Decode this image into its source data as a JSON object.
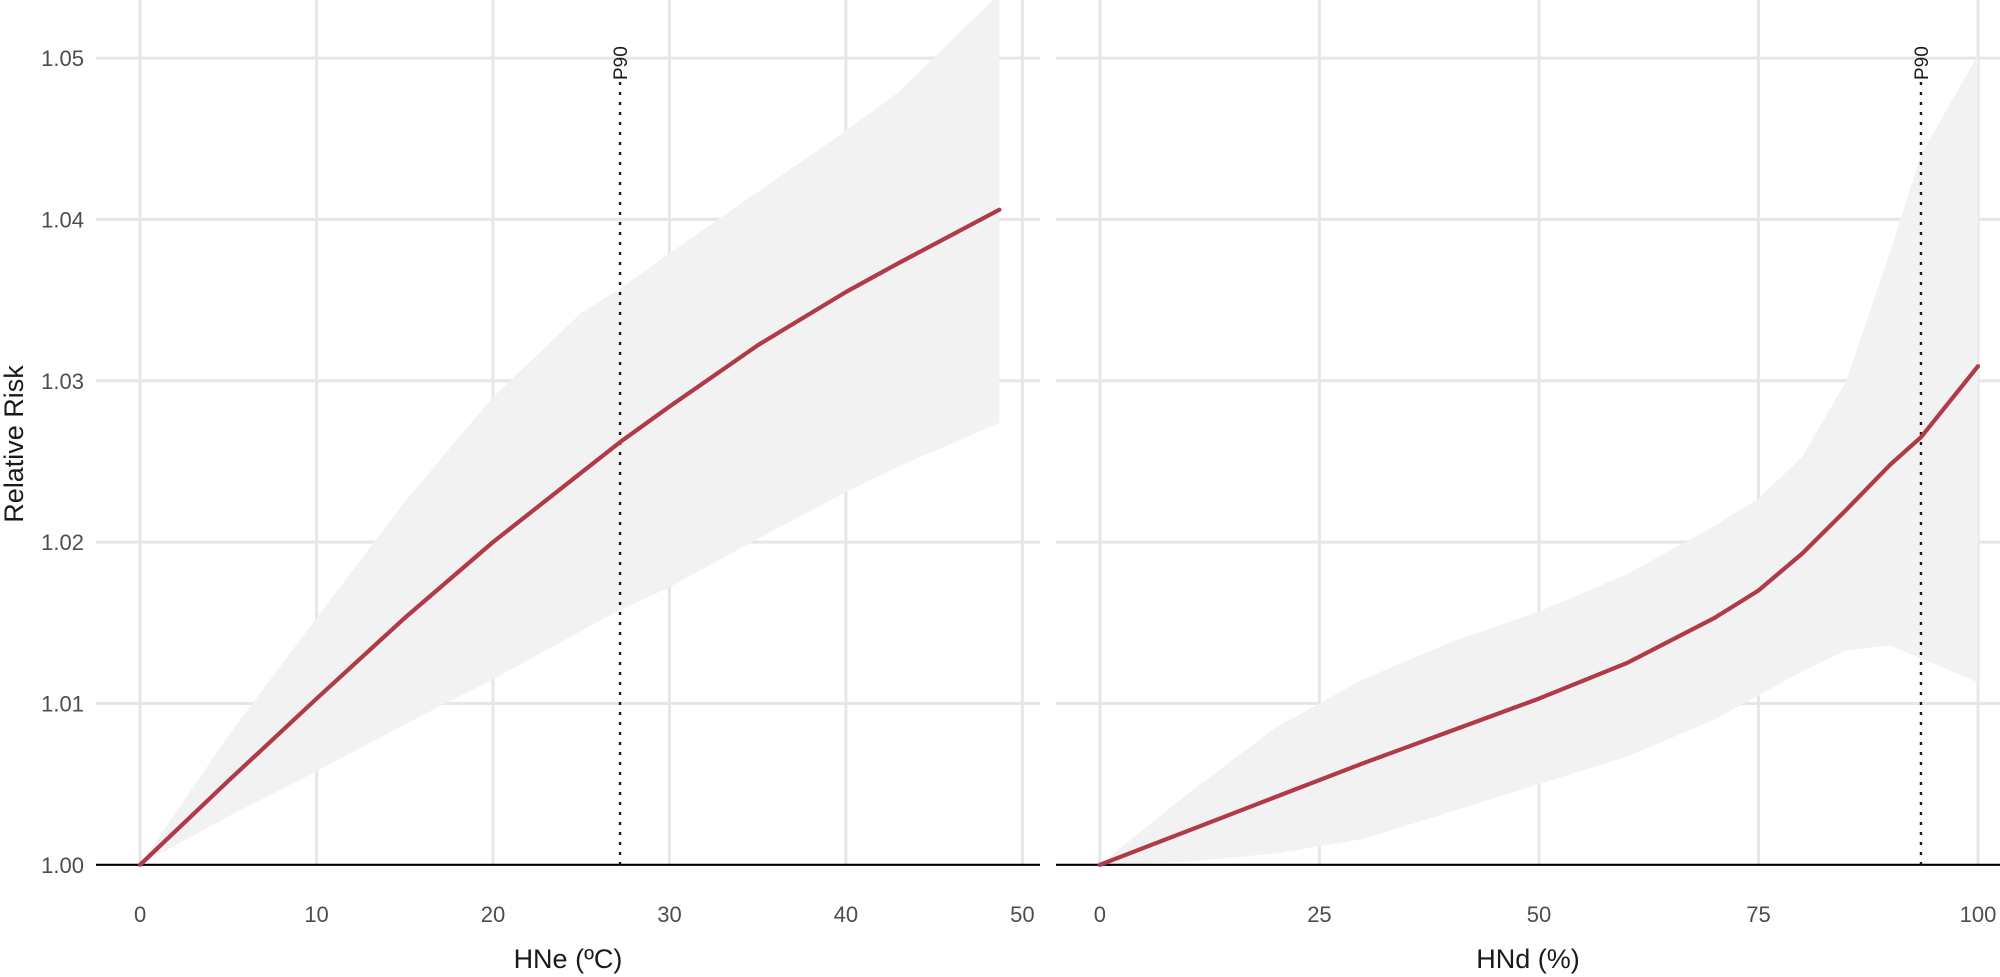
{
  "figure": {
    "ylabel": "Relative Risk"
  },
  "chart_data": [
    {
      "type": "line",
      "xlabel": "HNe (ºC)",
      "ylabel": "Relative Risk",
      "xlim": [
        -2.5,
        51
      ],
      "ylim": [
        0.9985,
        1.0536
      ],
      "x_ticks": [
        0,
        10,
        20,
        30,
        40,
        50
      ],
      "x_tick_labels": [
        "0",
        "10",
        "20",
        "30",
        "40",
        "50"
      ],
      "y_ticks": [
        1.0,
        1.01,
        1.02,
        1.03,
        1.04,
        1.05
      ],
      "y_tick_labels": [
        "1.00",
        "1.01",
        "1.02",
        "1.03",
        "1.04",
        "1.05"
      ],
      "grid": true,
      "reference_line": {
        "x": 27.2,
        "label": "P90",
        "style": "dotted"
      },
      "colors": {
        "line": "#B03A48",
        "band": "#F2F2F2",
        "grid": "#E6E6E6",
        "axis": "#000000"
      },
      "series": [
        {
          "x": [
            0,
            5,
            10,
            15,
            20,
            25,
            27.2,
            30,
            35,
            40,
            43,
            48.7
          ],
          "y": [
            1.0,
            1.0052,
            1.0103,
            1.0153,
            1.02,
            1.0243,
            1.0262,
            1.0284,
            1.0322,
            1.0355,
            1.0373,
            1.0406
          ],
          "lower": [
            1.0,
            1.003,
            1.0058,
            1.0087,
            1.0115,
            1.0145,
            1.0158,
            1.0172,
            1.0202,
            1.0231,
            1.0247,
            1.0274
          ],
          "upper": [
            1.0,
            1.008,
            1.0153,
            1.0225,
            1.029,
            1.0342,
            1.0357,
            1.0379,
            1.0417,
            1.0455,
            1.0479,
            1.054
          ]
        }
      ]
    },
    {
      "type": "line",
      "xlabel": "HNd (%)",
      "xlim": [
        -5,
        102.5
      ],
      "ylim": [
        0.9985,
        1.0536
      ],
      "x_ticks": [
        0,
        25,
        50,
        75,
        100
      ],
      "x_tick_labels": [
        "0",
        "25",
        "50",
        "75",
        "100"
      ],
      "y_ticks": [
        1.0,
        1.01,
        1.02,
        1.03,
        1.04,
        1.05
      ],
      "grid": true,
      "reference_line": {
        "x": 93.5,
        "label": "P90",
        "style": "dotted"
      },
      "colors": {
        "line": "#B03A48",
        "band": "#F2F2F2",
        "grid": "#E6E6E6",
        "axis": "#000000"
      },
      "series": [
        {
          "x": [
            0,
            10,
            20,
            30,
            40,
            50,
            60,
            70,
            75,
            80,
            85,
            90,
            93.5,
            100
          ],
          "y": [
            1.0,
            1.0021,
            1.0042,
            1.0063,
            1.0083,
            1.0103,
            1.0125,
            1.0153,
            1.017,
            1.0193,
            1.022,
            1.0248,
            1.0265,
            1.0309
          ],
          "lower": [
            1.0,
            1.0002,
            1.0007,
            1.0016,
            1.0033,
            1.005,
            1.0067,
            1.009,
            1.0105,
            1.012,
            1.0133,
            1.0136,
            1.0128,
            1.0113
          ],
          "upper": [
            1.0,
            1.0044,
            1.0085,
            1.0115,
            1.0138,
            1.0157,
            1.018,
            1.021,
            1.0227,
            1.0253,
            1.03,
            1.038,
            1.044,
            1.0502
          ]
        }
      ]
    }
  ]
}
